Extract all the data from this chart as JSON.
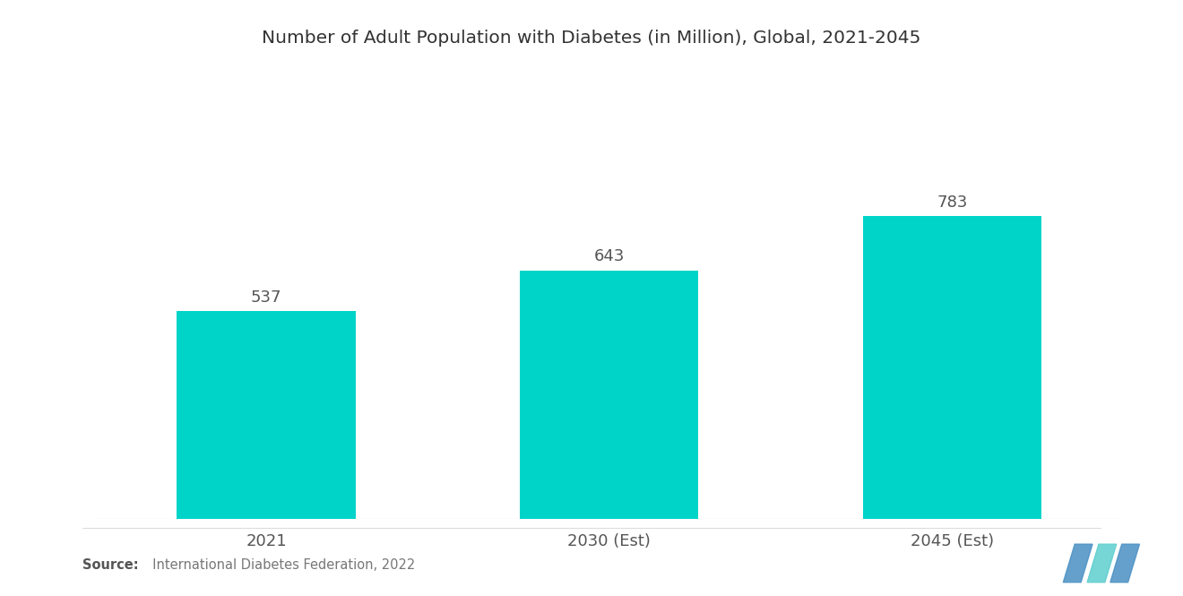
{
  "title": "Number of Adult Population with Diabetes (in Million), Global, 2021-2045",
  "categories": [
    "2021",
    "2030 (Est)",
    "2045 (Est)"
  ],
  "values": [
    537,
    643,
    783
  ],
  "bar_color": "#00D4C8",
  "background_color": "#ffffff",
  "title_fontsize": 14.5,
  "label_fontsize": 13,
  "tick_fontsize": 13,
  "source_bold": "Source:",
  "source_normal": "  International Diabetes Federation, 2022",
  "ylim": [
    0,
    1050
  ]
}
